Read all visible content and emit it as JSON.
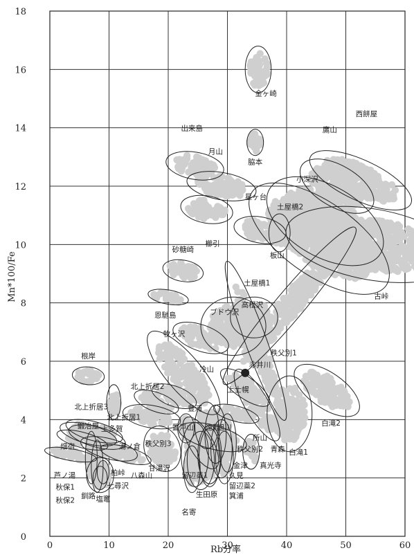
{
  "chart_data": {
    "type": "scatter",
    "title": "",
    "xlabel": "Rb分率",
    "ylabel": "Mn*100/Fe",
    "xlim": [
      0,
      60
    ],
    "ylim": [
      0,
      18
    ],
    "xticks": [
      0,
      10,
      20,
      30,
      40,
      50,
      60
    ],
    "yticks": [
      0,
      2,
      4,
      6,
      8,
      10,
      12,
      14,
      16,
      18
    ],
    "grid": true,
    "point_color": "#cfcfcf",
    "highlight_color": "#222222",
    "highlight_point": {
      "x": 33,
      "y": 5.6
    },
    "groups": [
      {
        "label": "金ヶ崎",
        "cx": 35.2,
        "cy": 16.0,
        "rx": 2.2,
        "ry": 0.8,
        "angle": 0,
        "lx": 36.5,
        "ly": 15.1
      },
      {
        "label": "脇本",
        "cx": 34.7,
        "cy": 13.5,
        "rx": 1.4,
        "ry": 0.45,
        "angle": 0,
        "lx": 34.7,
        "ly": 12.75
      },
      {
        "label": "出来島",
        "cx": 24.5,
        "cy": 12.7,
        "rx": 2.3,
        "ry": 1.0,
        "angle": -80,
        "lx": 24.0,
        "ly": 13.9
      },
      {
        "label": "月山",
        "cx": 29.0,
        "cy": 12.0,
        "rx": 2.3,
        "ry": 1.2,
        "angle": -80,
        "lx": 28.0,
        "ly": 13.1
      },
      {
        "label": "櫛引",
        "cx": 26.5,
        "cy": 11.2,
        "rx": 2.3,
        "ry": 0.9,
        "angle": -80,
        "lx": 27.5,
        "ly": 9.95
      },
      {
        "label": "星ヶ台",
        "cx": 35.5,
        "cy": 10.5,
        "rx": 2.2,
        "ry": 0.9,
        "angle": -80,
        "lx": 34.8,
        "ly": 11.55
      },
      {
        "label": "板山",
        "cx": 38.8,
        "cy": 10.4,
        "rx": 1.8,
        "ry": 0.65,
        "angle": 0,
        "lx": 38.4,
        "ly": 9.55
      },
      {
        "label": "鷹山",
        "cx": 48.5,
        "cy": 12.0,
        "rx": 3.5,
        "ry": 1.4,
        "angle": -60,
        "lx": 47.3,
        "ly": 13.85
      },
      {
        "label": "西餅屋",
        "cx": 52.5,
        "cy": 12.2,
        "rx": 3.4,
        "ry": 1.9,
        "angle": -65,
        "lx": 53.5,
        "ly": 14.4
      },
      {
        "label": "小深沢",
        "cx": 46.5,
        "cy": 10.8,
        "rx": 6.0,
        "ry": 2.2,
        "angle": -60,
        "lx": 43.5,
        "ly": 12.15
      },
      {
        "label": "土屋橋2",
        "cx": 45.5,
        "cy": 10.2,
        "rx": 6.2,
        "ry": 2.8,
        "angle": -55,
        "lx": 40.6,
        "ly": 11.2
      },
      {
        "label": "古峠",
        "cx": 54.5,
        "cy": 10.0,
        "rx": 6.0,
        "ry": 3.0,
        "angle": -80,
        "lx": 56.0,
        "ly": 8.15
      },
      {
        "label": "土屋橋1",
        "cx": 40.5,
        "cy": 7.9,
        "rx": 2.4,
        "ry": 3.5,
        "angle": 40,
        "lx": 35.0,
        "ly": 8.6
      },
      {
        "label": "砂糖崎",
        "cx": 22.5,
        "cy": 9.1,
        "rx": 1.8,
        "ry": 0.7,
        "angle": -80,
        "lx": 22.5,
        "ly": 9.75
      },
      {
        "label": "恩馳島",
        "cx": 20.0,
        "cy": 8.2,
        "rx": 1.2,
        "ry": 0.7,
        "angle": -80,
        "lx": 19.5,
        "ly": 7.5
      },
      {
        "label": "高松沢",
        "cx": 34.5,
        "cy": 7.5,
        "rx": 4.0,
        "ry": 0.7,
        "angle": 0,
        "lx": 34.2,
        "ly": 7.85
      },
      {
        "label": "ブドウ沢",
        "cx": 31.0,
        "cy": 7.2,
        "rx": 5.5,
        "ry": 1.0,
        "angle": 0,
        "lx": 29.5,
        "ly": 7.6
      },
      {
        "label": "牧ヶ沢",
        "cx": 25.5,
        "cy": 6.8,
        "rx": 2.2,
        "ry": 1.0,
        "angle": -70,
        "lx": 21.0,
        "ly": 6.85
      },
      {
        "label": "秩父別1",
        "cx": 34.8,
        "cy": 6.7,
        "rx": 1.8,
        "ry": 2.9,
        "angle": -20,
        "lx": 39.5,
        "ly": 6.2
      },
      {
        "label": "根岸",
        "cx": 6.5,
        "cy": 5.5,
        "rx": 1.5,
        "ry": 0.55,
        "angle": -85,
        "lx": 6.5,
        "ly": 6.1
      },
      {
        "label": "冷山",
        "cx": 22.6,
        "cy": 5.6,
        "rx": 3.0,
        "ry": 1.8,
        "angle": -40,
        "lx": 26.5,
        "ly": 5.65
      },
      {
        "label": "赤井川",
        "cx": 33.0,
        "cy": 5.1,
        "rx": 1.8,
        "ry": 1.0,
        "angle": -55,
        "lx": 35.5,
        "ly": 5.8
      },
      {
        "label": "上士幌",
        "cx": 35.0,
        "cy": 4.5,
        "rx": 2.0,
        "ry": 1.4,
        "angle": -30,
        "lx": 31.8,
        "ly": 4.95
      },
      {
        "label": "白滝2",
        "cx": 46.8,
        "cy": 5.0,
        "rx": 3.0,
        "ry": 1.3,
        "angle": -55,
        "lx": 47.5,
        "ly": 3.8
      },
      {
        "label": "白滝1",
        "cx": 40.5,
        "cy": 4.2,
        "rx": 3.8,
        "ry": 1.3,
        "angle": 0,
        "lx": 42.0,
        "ly": 2.8
      },
      {
        "label": "北上折居2",
        "cx": 18.0,
        "cy": 4.6,
        "rx": 1.6,
        "ry": 0.8,
        "angle": -70,
        "lx": 16.5,
        "ly": 5.05
      },
      {
        "label": "豊浦",
        "cx": 21.0,
        "cy": 4.8,
        "rx": 1.7,
        "ry": 0.8,
        "angle": -70,
        "lx": 24.5,
        "ly": 4.3
      },
      {
        "label": "北上折居3",
        "cx": 10.8,
        "cy": 4.6,
        "rx": 1.2,
        "ry": 0.6,
        "angle": 0,
        "lx": 7.0,
        "ly": 4.35
      },
      {
        "label": "北上折居1",
        "cx": 17.2,
        "cy": 4.1,
        "rx": 1.9,
        "ry": 1.0,
        "angle": -80,
        "lx": 12.5,
        "ly": 4.0
      },
      {
        "label": "置戸山",
        "cx": 23.0,
        "cy": 3.7,
        "rx": 1.4,
        "ry": 0.5,
        "angle": 0,
        "lx": 22.5,
        "ly": 3.65
      },
      {
        "label": "遠軽",
        "cx": 26.5,
        "cy": 3.8,
        "rx": 2.0,
        "ry": 0.8,
        "angle": 0,
        "lx": 27.5,
        "ly": 3.65
      },
      {
        "label": "旭川",
        "cx": 27.5,
        "cy": 3.4,
        "rx": 2.0,
        "ry": 1.2,
        "angle": -75,
        "lx": 29.5,
        "ly": 3.65
      },
      {
        "label": "所山",
        "cx": 31.5,
        "cy": 4.2,
        "rx": 1.3,
        "ry": 0.8,
        "angle": -75,
        "lx": 35.5,
        "ly": 3.3
      },
      {
        "label": "秩父別3",
        "cx": 25.5,
        "cy": 3.2,
        "rx": 2.0,
        "ry": 1.0,
        "angle": -30,
        "lx": 18.3,
        "ly": 3.1
      },
      {
        "label": "秩父別2",
        "cx": 28.0,
        "cy": 3.5,
        "rx": 1.8,
        "ry": 1.0,
        "angle": 0,
        "lx": 33.8,
        "ly": 2.9
      },
      {
        "label": "青森",
        "cx": 30.0,
        "cy": 3.2,
        "rx": 1.5,
        "ry": 1.0,
        "angle": 0,
        "lx": 38.5,
        "ly": 2.9
      },
      {
        "label": "金津",
        "cx": 29.0,
        "cy": 3.0,
        "rx": 1.8,
        "ry": 1.0,
        "angle": 0,
        "lx": 32.2,
        "ly": 2.35
      },
      {
        "label": "真光寺",
        "cx": 34.0,
        "cy": 2.9,
        "rx": 1.4,
        "ry": 0.6,
        "angle": 0,
        "lx": 37.3,
        "ly": 2.35
      },
      {
        "label": "久見",
        "cx": 27.0,
        "cy": 2.8,
        "rx": 2.0,
        "ry": 1.0,
        "angle": 0,
        "lx": 31.5,
        "ly": 2.0
      },
      {
        "label": "留辺蘂1",
        "cx": 24.5,
        "cy": 2.8,
        "rx": 2.3,
        "ry": 1.1,
        "angle": 0,
        "lx": 24.5,
        "ly": 2.0
      },
      {
        "label": "留辺蘂2",
        "cx": 27.0,
        "cy": 2.7,
        "rx": 1.8,
        "ry": 1.0,
        "angle": 0,
        "lx": 32.5,
        "ly": 1.65
      },
      {
        "label": "生田原",
        "cx": 25.5,
        "cy": 2.6,
        "rx": 2.3,
        "ry": 1.0,
        "angle": 0,
        "lx": 26.5,
        "ly": 1.35
      },
      {
        "label": "箕浦",
        "cx": 29.5,
        "cy": 2.7,
        "rx": 1.5,
        "ry": 0.9,
        "angle": 0,
        "lx": 31.5,
        "ly": 1.3
      },
      {
        "label": "名寄",
        "cx": 24.0,
        "cy": 2.3,
        "rx": 1.4,
        "ry": 0.8,
        "angle": 0,
        "lx": 23.5,
        "ly": 0.75
      },
      {
        "label": "甘湯沢",
        "cx": 19.0,
        "cy": 3.0,
        "rx": 3.0,
        "ry": 0.8,
        "angle": -20,
        "lx": 18.5,
        "ly": 2.25
      },
      {
        "label": "八森山",
        "cx": 12.8,
        "cy": 2.8,
        "rx": 1.3,
        "ry": 0.9,
        "angle": -75,
        "lx": 15.5,
        "ly": 2.0
      },
      {
        "label": "柏峠",
        "cx": 10.0,
        "cy": 3.0,
        "rx": 1.7,
        "ry": 1.0,
        "angle": -75,
        "lx": 11.5,
        "ly": 2.1
      },
      {
        "label": "湯ノ倉",
        "cx": 8.0,
        "cy": 3.4,
        "rx": 1.7,
        "ry": 1.0,
        "angle": -75,
        "lx": 13.5,
        "ly": 3.0
      },
      {
        "label": "上多賀",
        "cx": 7.5,
        "cy": 3.6,
        "rx": 1.6,
        "ry": 1.0,
        "angle": -75,
        "lx": 10.5,
        "ly": 3.6
      },
      {
        "label": "鍛冶屋",
        "cx": 6.5,
        "cy": 3.5,
        "rx": 1.6,
        "ry": 1.0,
        "angle": -75,
        "lx": 6.5,
        "ly": 3.7
      },
      {
        "label": "畑宿",
        "cx": 5.5,
        "cy": 3.3,
        "rx": 1.3,
        "ry": 0.9,
        "angle": -75,
        "lx": 3.0,
        "ly": 3.0
      },
      {
        "label": "芦ノ湯",
        "cx": 3.5,
        "cy": 2.8,
        "rx": 1.0,
        "ry": 0.9,
        "angle": -80,
        "lx": 2.5,
        "ly": 2.0
      },
      {
        "label": "秋保1",
        "cx": 7.0,
        "cy": 2.7,
        "rx": 1.0,
        "ry": 0.9,
        "angle": 0,
        "lx": 2.6,
        "ly": 1.6
      },
      {
        "label": "秋保2",
        "cx": 8.0,
        "cy": 2.4,
        "rx": 1.0,
        "ry": 0.9,
        "angle": 0,
        "lx": 2.6,
        "ly": 1.15
      },
      {
        "label": "釧路",
        "cx": 8.5,
        "cy": 2.1,
        "rx": 2.3,
        "ry": 0.6,
        "angle": 0,
        "lx": 6.5,
        "ly": 1.3
      },
      {
        "label": "塩竈",
        "cx": 8.5,
        "cy": 2.0,
        "rx": 1.2,
        "ry": 0.4,
        "angle": 0,
        "lx": 9.0,
        "ly": 1.2
      },
      {
        "label": "七尋沢",
        "cx": 9.0,
        "cy": 2.2,
        "rx": 1.0,
        "ry": 0.4,
        "angle": 0,
        "lx": 11.5,
        "ly": 1.65
      }
    ]
  }
}
